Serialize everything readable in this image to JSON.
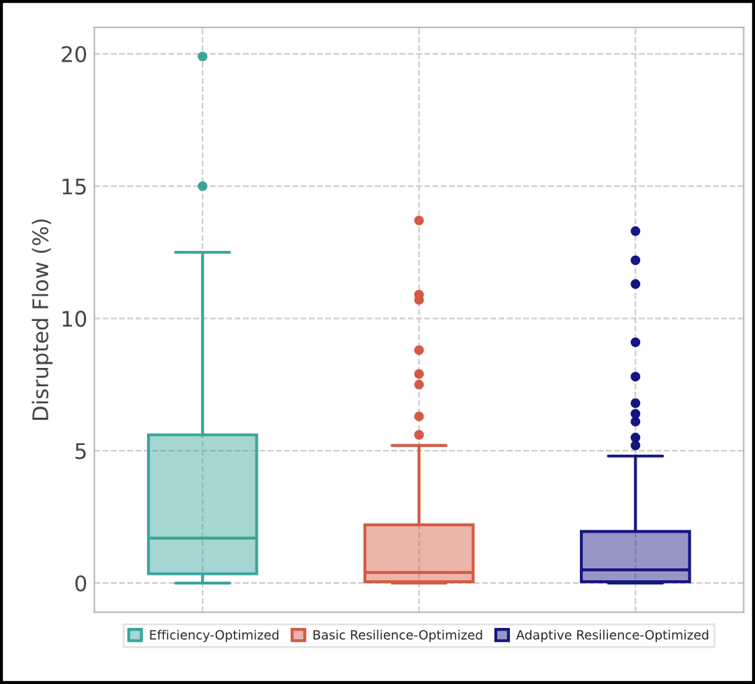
{
  "chart_data": {
    "type": "box",
    "ylabel": "Disrupted Flow (%)",
    "categories": [
      null,
      null,
      null
    ],
    "series": [
      {
        "name": "Efficiency-Optimized",
        "color": "#3aa59c",
        "boxes": [
          {
            "low": 0,
            "q1": 0.35,
            "median": 1.7,
            "q3": 5.6,
            "high": 12.5,
            "outliers": [
              19.9,
              15.0
            ]
          },
          null,
          null
        ]
      },
      {
        "name": "Basic Resilience-Optimized",
        "color": "#d45a45",
        "boxes": [
          null,
          {
            "low": 0,
            "q1": 0.05,
            "median": 0.4,
            "q3": 2.2,
            "high": 5.2,
            "outliers": [
              13.7,
              10.9,
              10.7,
              8.8,
              7.9,
              7.5,
              6.3,
              5.6
            ]
          },
          null
        ]
      },
      {
        "name": "Adaptive Resilience-Optimized",
        "color": "#161680",
        "boxes": [
          null,
          null,
          {
            "low": 0,
            "q1": 0.05,
            "median": 0.5,
            "q3": 1.95,
            "high": 4.8,
            "outliers": [
              13.3,
              12.2,
              11.3,
              9.1,
              7.8,
              6.8,
              6.4,
              6.1,
              5.5,
              5.2
            ]
          }
        ]
      }
    ],
    "ylim": [
      -1.1,
      21
    ],
    "yticks": [
      0,
      5,
      10,
      15,
      20
    ],
    "grid": true,
    "legend": "bottom",
    "tick_labels": "y"
  }
}
